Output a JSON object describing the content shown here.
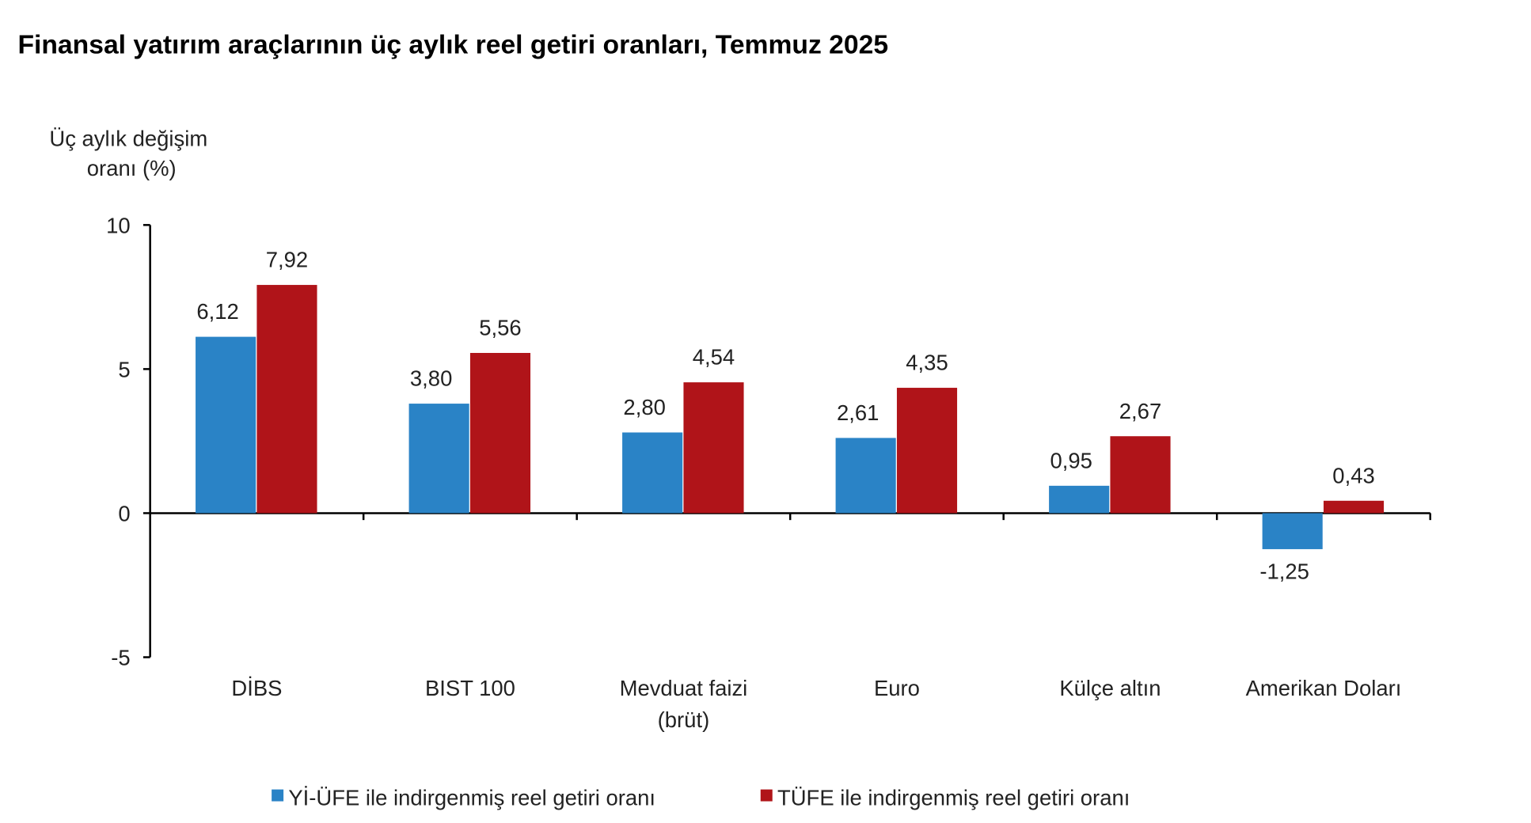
{
  "chart_data": {
    "type": "bar",
    "title": "Finansal yatırım araçlarının üç aylık reel getiri oranları, Temmuz 2025",
    "ylabel": [
      "Üç aylık değişim",
      "oranı (%)"
    ],
    "xlabel": "",
    "ylim": [
      -5,
      10
    ],
    "yticks": [
      10,
      5,
      0,
      -5
    ],
    "ytick_labels": [
      "10",
      "5",
      "0",
      "-5"
    ],
    "categories": [
      [
        "DİBS"
      ],
      [
        "BIST 100"
      ],
      [
        "Mevduat faizi",
        "(brüt)"
      ],
      [
        "Euro"
      ],
      [
        "Külçe altın"
      ],
      [
        "Amerikan Doları"
      ]
    ],
    "series": [
      {
        "name": "Yİ-ÜFE ile indirgenmiş reel getiri oranı",
        "color": "#2a83c6",
        "values": [
          6.12,
          3.8,
          2.8,
          2.61,
          0.95,
          -1.25
        ],
        "labels": [
          "6,12",
          "3,80",
          "2,80",
          "2,61",
          "0,95",
          "-1,25"
        ]
      },
      {
        "name": "TÜFE ile indirgenmiş reel getiri oranı",
        "color": "#b01419",
        "values": [
          7.92,
          5.56,
          4.54,
          4.35,
          2.67,
          0.43
        ],
        "labels": [
          "7,92",
          "5,56",
          "4,54",
          "4,35",
          "2,67",
          "0,43"
        ]
      }
    ],
    "legend_position": "bottom",
    "grid": false
  }
}
